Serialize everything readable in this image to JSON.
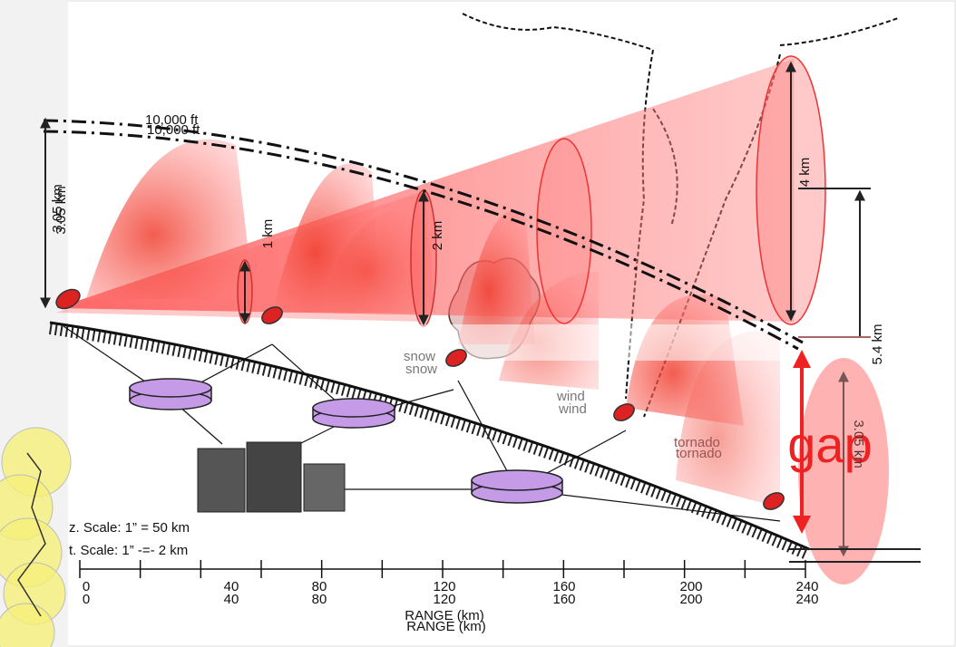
{
  "annotations": {
    "altitude": "10,000 ft",
    "height_left": "3.05 km",
    "beam_small": "1 km",
    "beam_medium": "2 km",
    "beam_large": "4 km",
    "height_right": "5.4 km",
    "gap": "gap",
    "gap_height": "3.05 km",
    "snow": "snow",
    "wind": "wind",
    "tornado": "tornado"
  },
  "scales": {
    "horizontal": "z. Scale: 1” = 50 km",
    "vertical": "t. Scale: 1” -=- 2 km"
  },
  "range_axis": {
    "labels": [
      "0",
      "40",
      "80",
      "120",
      "160",
      "200",
      "240"
    ],
    "title": "RANGE (km)"
  }
}
